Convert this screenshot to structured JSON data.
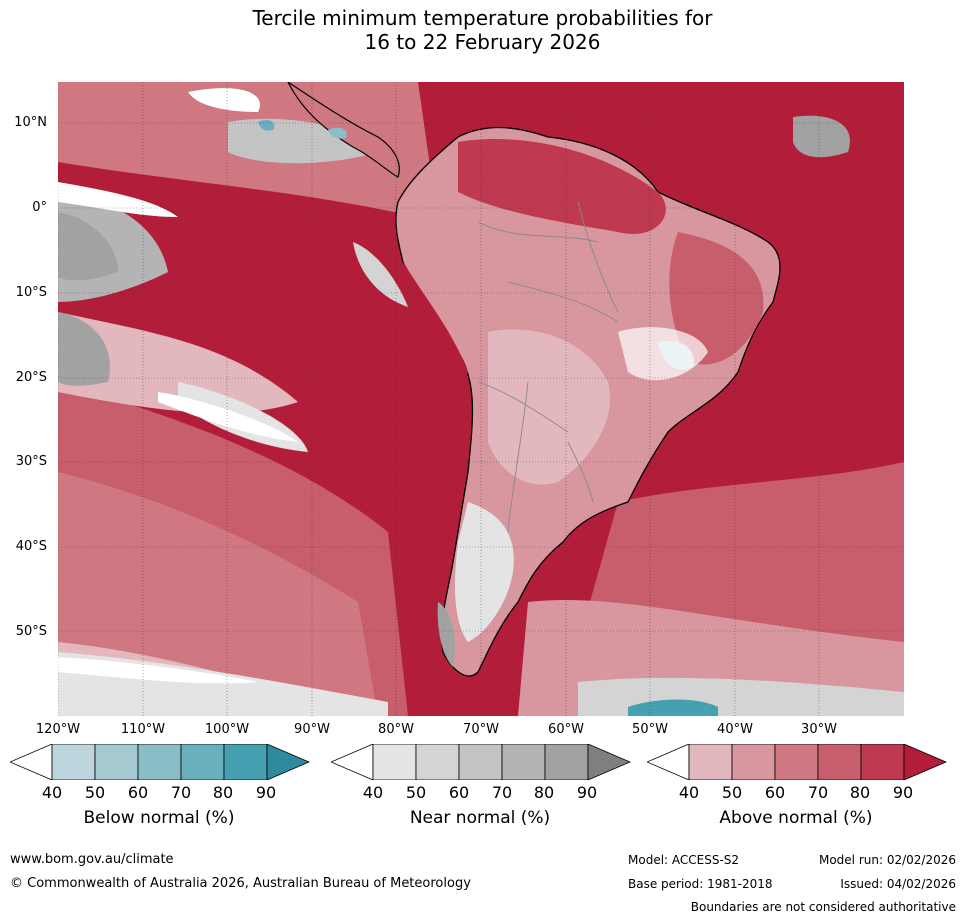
{
  "title": {
    "line1": "Tercile minimum temperature probabilities for",
    "line2": "16 to 22 February 2026"
  },
  "map": {
    "region": "South America and surrounding oceans",
    "lat_labels": [
      "10°N",
      "0°",
      "10°S",
      "20°S",
      "30°S",
      "40°S",
      "50°S"
    ],
    "lon_labels": [
      "120°W",
      "110°W",
      "100°W",
      "90°W",
      "80°W",
      "70°W",
      "60°W",
      "50°W",
      "40°W",
      "30°W"
    ]
  },
  "legend": {
    "below": {
      "title": "Below normal (%)",
      "ticks": [
        "40",
        "50",
        "60",
        "70",
        "80",
        "90"
      ],
      "colors": [
        "#ffffff",
        "#bdd5dc",
        "#a5c9d1",
        "#8bbdc7",
        "#6aafbd",
        "#45a0b2",
        "#2e8a9e"
      ]
    },
    "near": {
      "title": "Near normal (%)",
      "ticks": [
        "40",
        "50",
        "60",
        "70",
        "80",
        "90"
      ],
      "colors": [
        "#ffffff",
        "#e4e4e4",
        "#d4d4d4",
        "#c4c4c4",
        "#b4b4b4",
        "#a2a2a2",
        "#7f7f7f"
      ]
    },
    "above": {
      "title": "Above normal (%)",
      "ticks": [
        "40",
        "50",
        "60",
        "70",
        "80",
        "90"
      ],
      "colors": [
        "#ffffff",
        "#e2b7bd",
        "#d8969f",
        "#d07882",
        "#c85d6b",
        "#bf3950",
        "#b21e3a"
      ]
    }
  },
  "footer": {
    "website": "www.bom.gov.au/climate",
    "copyright": "© Commonwealth of Australia 2026, Australian Bureau of Meteorology",
    "model": "Model: ACCESS-S2",
    "model_run": "Model run: 02/02/2026",
    "base_period": "Base period: 1981-2018",
    "issued": "Issued: 04/02/2026",
    "disclaimer": "Boundaries are not considered authoritative"
  }
}
